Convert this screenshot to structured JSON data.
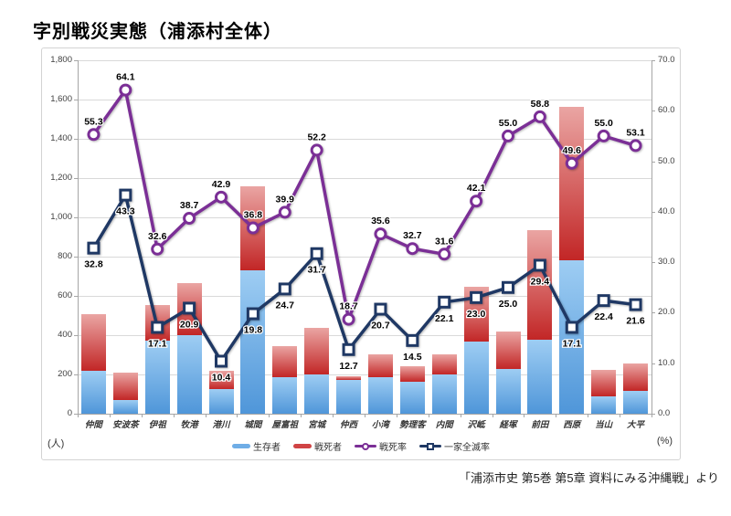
{
  "title": "字別戦災実態（浦添村全体）",
  "source": "「浦添市史 第5巻 第5章 資料にみる沖縄戦」より",
  "chart_data": {
    "type": "bar",
    "subtype": "stacked-bar with two overlay line series (combo chart)",
    "title": "字別戦災実態（浦添村全体）",
    "categories": [
      "仲間",
      "安波茶",
      "伊祖",
      "牧港",
      "港川",
      "城間",
      "屋富祖",
      "宮城",
      "仲西",
      "小湾",
      "勢理客",
      "内間",
      "沢岻",
      "経塚",
      "前田",
      "西原",
      "当山",
      "大平"
    ],
    "series": [
      {
        "name": "生存者",
        "type": "bar",
        "stack": true,
        "axis": "left",
        "color_top": "#9ecdf3",
        "color_bottom": "#4f96d9",
        "values": [
          220,
          70,
          370,
          398,
          125,
          730,
          185,
          199,
          170,
          185,
          164,
          199,
          366,
          226,
          377,
          781,
          90,
          118
        ]
      },
      {
        "name": "戦死者",
        "type": "bar",
        "stack": true,
        "axis": "left",
        "color_top": "#eaa5a3",
        "color_bottom": "#c22626",
        "values": [
          285,
          140,
          182,
          267,
          95,
          427,
          161,
          237,
          20,
          116,
          78,
          102,
          282,
          194,
          558,
          783,
          133,
          139
        ]
      },
      {
        "name": "戦死率",
        "type": "line",
        "axis": "right",
        "color": "#7b2f96",
        "marker": "circle",
        "values": [
          55.3,
          64.1,
          32.6,
          38.7,
          42.9,
          36.8,
          39.9,
          52.2,
          18.7,
          35.6,
          32.7,
          31.6,
          42.1,
          55.0,
          58.8,
          49.6,
          55.0,
          53.1
        ]
      },
      {
        "name": "一家全滅率",
        "type": "line",
        "axis": "right",
        "color": "#1f3864",
        "marker": "square",
        "values": [
          32.8,
          43.3,
          17.1,
          20.9,
          10.4,
          19.8,
          24.7,
          31.7,
          12.7,
          20.7,
          14.5,
          22.1,
          23.0,
          25.0,
          29.4,
          17.1,
          22.4,
          21.6
        ]
      }
    ],
    "left_axis": {
      "min": 0,
      "max": 1800,
      "step": 200,
      "unit": "(人)",
      "ticks": [
        "0",
        "200",
        "400",
        "600",
        "800",
        "1,000",
        "1,200",
        "1,400",
        "1,600",
        "1,800"
      ]
    },
    "right_axis": {
      "min": 0,
      "max": 70,
      "step": 10,
      "unit": "(%)",
      "ticks": [
        "0.0",
        "10.0",
        "20.0",
        "30.0",
        "40.0",
        "50.0",
        "60.0",
        "70.0"
      ]
    },
    "grid": "horizontal only",
    "legend_position": "bottom center",
    "data_labels": "line series labeled with one decimal place"
  }
}
